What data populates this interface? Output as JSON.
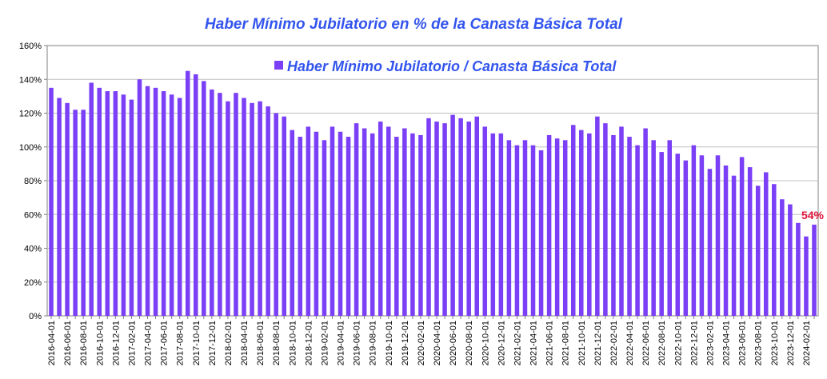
{
  "chart_data": {
    "type": "bar",
    "title": "Haber Mínimo Jubilatorio en % de la Canasta Básica Total",
    "xlabel": "",
    "ylabel": "",
    "legend": {
      "label": "Haber Mínimo Jubilatorio / Canasta Básica Total",
      "position": "top"
    },
    "ylim": [
      0,
      160
    ],
    "yticks": [
      0,
      20,
      40,
      60,
      80,
      100,
      120,
      140,
      160
    ],
    "ytick_labels": [
      "0%",
      "20%",
      "40%",
      "60%",
      "80%",
      "100%",
      "120%",
      "140%",
      "160%"
    ],
    "grid": true,
    "colors": {
      "bar": "#7b3ff5",
      "annotation": "#e0143c",
      "title": "#3355ee",
      "legend_text": "#3355ee"
    },
    "annotation": {
      "text": "54%",
      "category": "2024-03-01"
    },
    "categories": [
      "2016-04-01",
      "2016-05-01",
      "2016-06-01",
      "2016-07-01",
      "2016-08-01",
      "2016-09-01",
      "2016-10-01",
      "2016-11-01",
      "2016-12-01",
      "2017-01-01",
      "2017-02-01",
      "2017-03-01",
      "2017-04-01",
      "2017-05-01",
      "2017-06-01",
      "2017-07-01",
      "2017-08-01",
      "2017-09-01",
      "2017-10-01",
      "2017-11-01",
      "2017-12-01",
      "2018-01-01",
      "2018-02-01",
      "2018-03-01",
      "2018-04-01",
      "2018-05-01",
      "2018-06-01",
      "2018-07-01",
      "2018-08-01",
      "2018-09-01",
      "2018-10-01",
      "2018-11-01",
      "2018-12-01",
      "2019-01-01",
      "2019-02-01",
      "2019-03-01",
      "2019-04-01",
      "2019-05-01",
      "2019-06-01",
      "2019-07-01",
      "2019-08-01",
      "2019-09-01",
      "2019-10-01",
      "2019-11-01",
      "2019-12-01",
      "2020-01-01",
      "2020-02-01",
      "2020-03-01",
      "2020-04-01",
      "2020-05-01",
      "2020-06-01",
      "2020-07-01",
      "2020-08-01",
      "2020-09-01",
      "2020-10-01",
      "2020-11-01",
      "2020-12-01",
      "2021-01-01",
      "2021-02-01",
      "2021-03-01",
      "2021-04-01",
      "2021-05-01",
      "2021-06-01",
      "2021-07-01",
      "2021-08-01",
      "2021-09-01",
      "2021-10-01",
      "2021-11-01",
      "2021-12-01",
      "2022-01-01",
      "2022-02-01",
      "2022-03-01",
      "2022-04-01",
      "2022-05-01",
      "2022-06-01",
      "2022-07-01",
      "2022-08-01",
      "2022-09-01",
      "2022-10-01",
      "2022-11-01",
      "2022-12-01",
      "2023-01-01",
      "2023-02-01",
      "2023-03-01",
      "2023-04-01",
      "2023-05-01",
      "2023-06-01",
      "2023-07-01",
      "2023-08-01",
      "2023-09-01",
      "2023-10-01",
      "2023-11-01",
      "2023-12-01",
      "2024-01-01",
      "2024-02-01",
      "2024-03-01"
    ],
    "shown_tick_labels": [
      "2016-04-01",
      "2016-06-01",
      "2016-08-01",
      "2016-10-01",
      "2016-12-01",
      "2017-02-01",
      "2017-04-01",
      "2017-06-01",
      "2017-08-01",
      "2017-10-01",
      "2017-12-01",
      "2018-02-01",
      "2018-04-01",
      "2018-06-01",
      "2018-08-01",
      "2018-10-01",
      "2018-12-01",
      "2019-02-01",
      "2019-04-01",
      "2019-06-01",
      "2019-08-01",
      "2019-10-01",
      "2019-12-01",
      "2020-02-01",
      "2020-04-01",
      "2020-06-01",
      "2020-08-01",
      "2020-10-01",
      "2020-12-01",
      "2021-02-01",
      "2021-04-01",
      "2021-06-01",
      "2021-08-01",
      "2021-10-01",
      "2021-12-01",
      "2022-02-01",
      "2022-04-01",
      "2022-06-01",
      "2022-08-01",
      "2022-10-01",
      "2022-12-01",
      "2023-02-01",
      "2023-04-01",
      "2023-06-01",
      "2023-08-01",
      "2023-10-01",
      "2023-12-01",
      "2024-02-01"
    ],
    "values": [
      135,
      129,
      126,
      122,
      122,
      138,
      135,
      133,
      133,
      131,
      128,
      140,
      136,
      135,
      133,
      131,
      129,
      145,
      143,
      139,
      134,
      132,
      127,
      132,
      129,
      126,
      127,
      124,
      120,
      118,
      110,
      106,
      112,
      109,
      104,
      112,
      109,
      106,
      114,
      111,
      108,
      115,
      112,
      106,
      111,
      108,
      107,
      117,
      115,
      114,
      119,
      117,
      115,
      118,
      112,
      108,
      108,
      104,
      101,
      104,
      101,
      98,
      107,
      105,
      104,
      113,
      110,
      108,
      118,
      114,
      107,
      112,
      106,
      101,
      111,
      104,
      97,
      104,
      96,
      92,
      101,
      95,
      87,
      95,
      89,
      83,
      94,
      88,
      77,
      85,
      78,
      69,
      66,
      55,
      47,
      54
    ]
  }
}
